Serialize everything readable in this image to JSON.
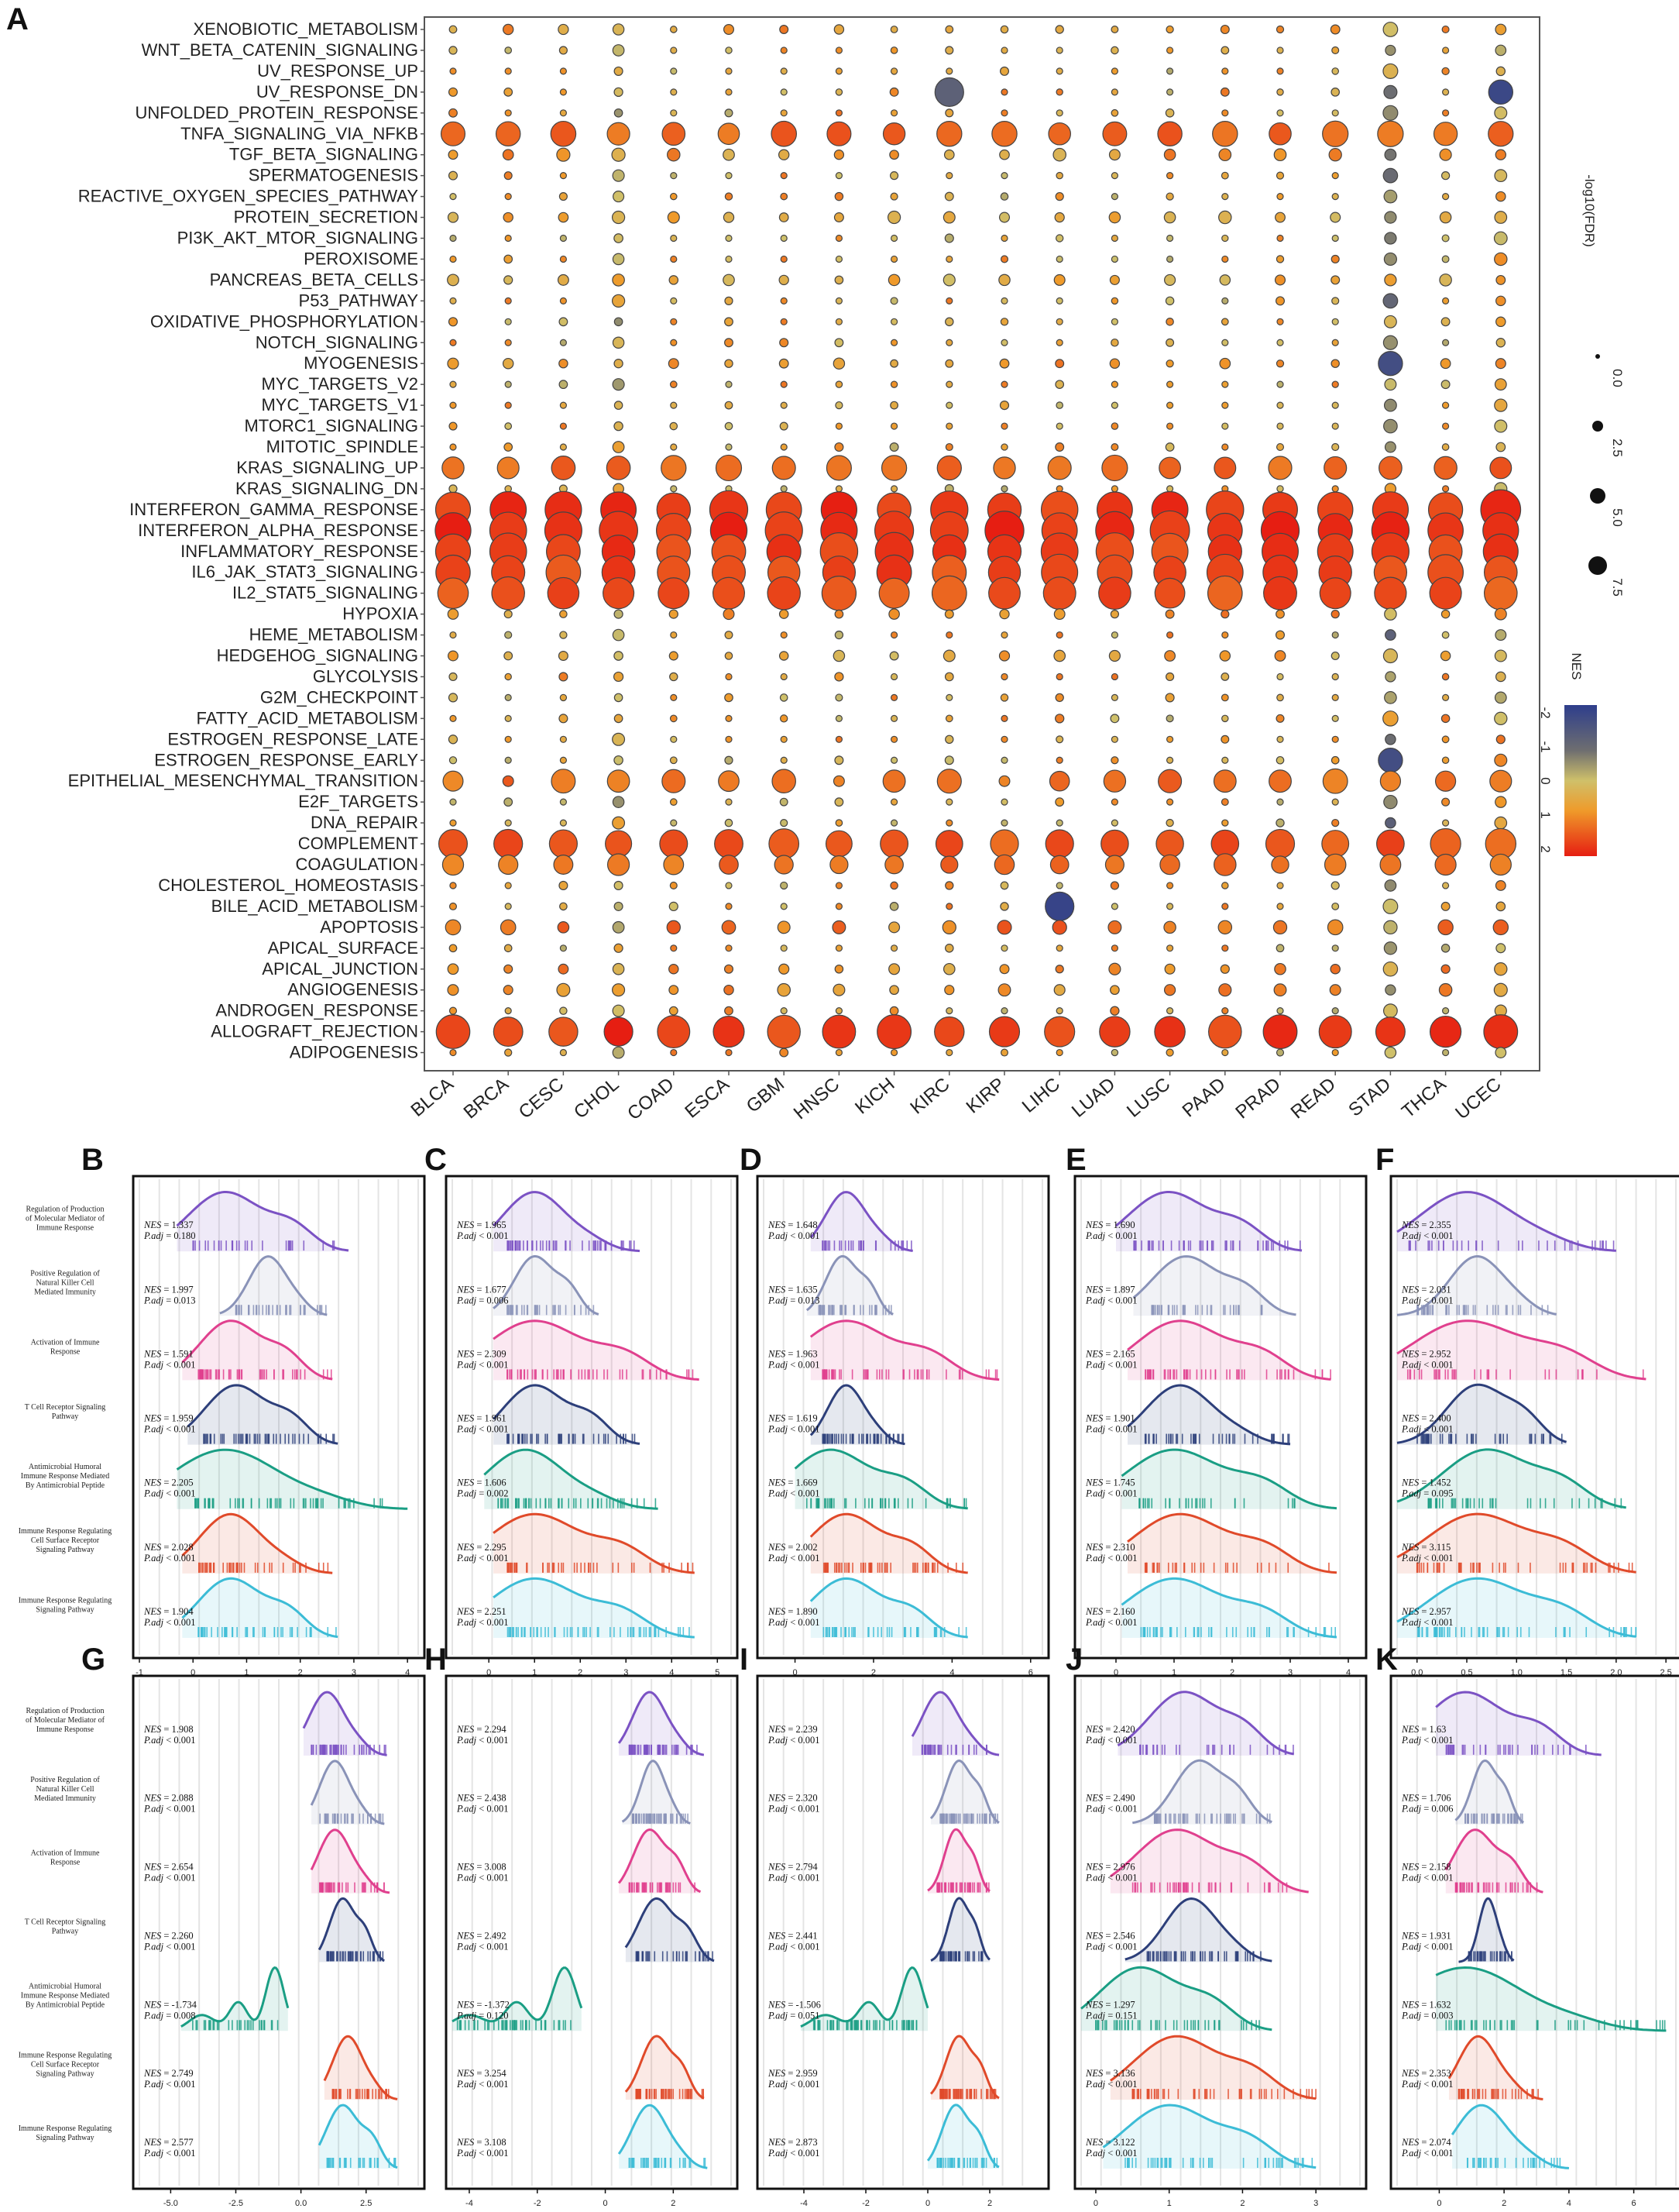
{
  "chart_data": [
    {
      "panel": "A",
      "type": "scatter",
      "title": "",
      "cancer_types": [
        "BLCA",
        "BRCA",
        "CESC",
        "CHOL",
        "COAD",
        "ESCA",
        "GBM",
        "HNSC",
        "KICH",
        "KIRC",
        "KIRP",
        "LIHC",
        "LUAD",
        "LUSC",
        "PAAD",
        "PRAD",
        "READ",
        "STAD",
        "THCA",
        "UCEC"
      ],
      "pathways": [
        "XENOBIOTIC_METABOLISM",
        "WNT_BETA_CATENIN_SIGNALING",
        "UV_RESPONSE_UP",
        "UV_RESPONSE_DN",
        "UNFOLDED_PROTEIN_RESPONSE",
        "TNFA_SIGNALING_VIA_NFKB",
        "TGF_BETA_SIGNALING",
        "SPERMATOGENESIS",
        "REACTIVE_OXYGEN_SPECIES_PATHWAY",
        "PROTEIN_SECRETION",
        "PI3K_AKT_MTOR_SIGNALING",
        "PEROXISOME",
        "PANCREAS_BETA_CELLS",
        "P53_PATHWAY",
        "OXIDATIVE_PHOSPHORYLATION",
        "NOTCH_SIGNALING",
        "MYOGENESIS",
        "MYC_TARGETS_V2",
        "MYC_TARGETS_V1",
        "MTORC1_SIGNALING",
        "MITOTIC_SPINDLE",
        "KRAS_SIGNALING_UP",
        "KRAS_SIGNALING_DN",
        "INTERFERON_GAMMA_RESPONSE",
        "INTERFERON_ALPHA_RESPONSE",
        "INFLAMMATORY_RESPONSE",
        "IL6_JAK_STAT3_SIGNALING",
        "IL2_STAT5_SIGNALING",
        "HYPOXIA",
        "HEME_METABOLISM",
        "HEDGEHOG_SIGNALING",
        "GLYCOLYSIS",
        "G2M_CHECKPOINT",
        "FATTY_ACID_METABOLISM",
        "ESTROGEN_RESPONSE_LATE",
        "ESTROGEN_RESPONSE_EARLY",
        "EPITHELIAL_MESENCHYMAL_TRANSITION",
        "E2F_TARGETS",
        "DNA_REPAIR",
        "COMPLEMENT",
        "COAGULATION",
        "CHOLESTEROL_HOMEOSTASIS",
        "BILE_ACID_METABOLISM",
        "APOPTOSIS",
        "APICAL_SURFACE",
        "APICAL_JUNCTION",
        "ANGIOGENESIS",
        "ANDROGEN_RESPONSE",
        "ALLOGRAFT_REJECTION",
        "ADIPOGENESIS"
      ],
      "size_legend_title": "-log10(FDR)",
      "size_legend_values": [
        "0.0",
        "2.5",
        "5.0",
        "7.5"
      ],
      "color_legend_title": "NES",
      "color_legend_ticks": [
        "-2",
        "-1",
        "0",
        "1",
        "2"
      ],
      "highlight_points": [
        {
          "pathway": "INTERFERON_GAMMA_RESPONSE",
          "cancer": "UCEC",
          "nes": 2.4,
          "neglog10fdr": 7.5
        },
        {
          "pathway": "UV_RESPONSE_DN",
          "cancer": "UCEC",
          "nes": -2.2,
          "neglog10fdr": 4
        },
        {
          "pathway": "UV_RESPONSE_DN",
          "cancer": "KIRC",
          "nes": -1.4,
          "neglog10fdr": 5
        },
        {
          "pathway": "BILE_ACID_METABOLISM",
          "cancer": "LIHC",
          "nes": -2.3,
          "neglog10fdr": 5
        },
        {
          "pathway": "MYOGENESIS",
          "cancer": "STAD",
          "nes": -2.0,
          "neglog10fdr": 4
        },
        {
          "pathway": "ESTROGEN_RESPONSE_EARLY",
          "cancer": "STAD",
          "nes": -2.0,
          "neglog10fdr": 4
        },
        {
          "pathway": "ALLOGRAFT_REJECTION",
          "cancer": "CHOL",
          "nes": 2.5,
          "neglog10fdr": 5
        }
      ]
    },
    {
      "panel": "B-K",
      "type": "area",
      "row_labels": [
        "Regulation of Production of Molecular Mediator of Immune Response",
        "Positive Regulation of Natural Killer Cell Mediated Immunity",
        "Activation of Immune Response",
        "T Cell Receptor Signaling Pathway",
        "Antimicrobial Humoral Immune Response Mediated By Antimicrobial Peptide",
        "Immune Response Regulating Cell Surface Receptor Signaling Pathway",
        "Immune Response Regulating Signaling Pathway"
      ],
      "row_colors": [
        "#7b52c4",
        "#8a93b8",
        "#e0408e",
        "#2d3f7a",
        "#1a9e84",
        "#e04a2a",
        "#3cbcd6"
      ],
      "panels": [
        {
          "label": "B",
          "xticks": [
            "-1",
            "0",
            "1",
            "2",
            "3",
            "4"
          ],
          "xlim": [
            -1,
            4.2
          ],
          "nes": [
            "1.337",
            "1.997",
            "1.591",
            "1.959",
            "2.205",
            "2.028",
            "1.904"
          ],
          "padj": [
            "0.180",
            "0.013",
            "0.001",
            "0.001",
            "0.001",
            "0.001",
            "0.001"
          ],
          "padj_op": [
            "=",
            "=",
            "<",
            "<",
            "<",
            "<",
            "<"
          ],
          "peak": [
            0.6,
            1.4,
            0.7,
            0.8,
            0.6,
            0.7,
            0.7
          ],
          "spread": [
            2.9,
            2.5,
            2.6,
            2.7,
            4.0,
            2.6,
            2.7
          ]
        },
        {
          "label": "C",
          "xticks": [
            "0",
            "1",
            "2",
            "3",
            "4",
            "5"
          ],
          "xlim": [
            -0.8,
            5.3
          ],
          "nes": [
            "1.965",
            "1.677",
            "2.309",
            "1.961",
            "1.606",
            "2.295",
            "2.251"
          ],
          "padj": [
            "0.001",
            "0.006",
            "0.001",
            "0.001",
            "0.002",
            "0.001",
            "0.001"
          ],
          "padj_op": [
            "<",
            "=",
            "<",
            "<",
            "=",
            "<",
            "<"
          ],
          "peak": [
            1.0,
            1.0,
            1.0,
            1.0,
            0.8,
            1.0,
            1.0
          ],
          "spread": [
            3.3,
            2.4,
            4.6,
            3.3,
            3.7,
            4.5,
            4.5
          ]
        },
        {
          "label": "D",
          "xticks": [
            "0",
            "2",
            "4",
            "6"
          ],
          "xlim": [
            -0.8,
            6.3
          ],
          "nes": [
            "1.648",
            "1.635",
            "1.963",
            "1.619",
            "1.669",
            "2.002",
            "1.890"
          ],
          "padj": [
            "0.001",
            "0.013",
            "0.001",
            "0.001",
            "0.001",
            "0.001",
            "0.001"
          ],
          "padj_op": [
            "<",
            "=",
            "<",
            "<",
            "<",
            "<",
            "<"
          ],
          "peak": [
            1.3,
            1.2,
            1.3,
            1.3,
            0.9,
            1.3,
            1.3
          ],
          "spread": [
            3.0,
            2.5,
            5.2,
            2.8,
            4.4,
            4.4,
            4.4
          ]
        },
        {
          "label": "E",
          "xticks": [
            "0",
            "1",
            "2",
            "3",
            "4"
          ],
          "xlim": [
            -0.6,
            4.2
          ],
          "nes": [
            "1.690",
            "1.897",
            "2.165",
            "1.901",
            "1.745",
            "2.310",
            "2.160"
          ],
          "padj": [
            "0.001",
            "0.001",
            "0.001",
            "0.001",
            "0.001",
            "0.001",
            "0.001"
          ],
          "padj_op": [
            "<",
            "<",
            "<",
            "<",
            "<",
            "<",
            "<"
          ],
          "peak": [
            0.9,
            1.2,
            1.1,
            1.1,
            1.0,
            1.1,
            1.0
          ],
          "spread": [
            3.2,
            3.1,
            3.7,
            3.0,
            3.8,
            3.8,
            3.8
          ]
        },
        {
          "label": "F",
          "xticks": [
            "0.0",
            "0.5",
            "1.0",
            "1.5",
            "2.0",
            "2.5"
          ],
          "xlim": [
            -0.2,
            2.6
          ],
          "nes": [
            "2.355",
            "2.031",
            "2.952",
            "2.400",
            "1.452",
            "3.115",
            "2.957"
          ],
          "padj": [
            "0.001",
            "0.001",
            "0.001",
            "0.001",
            "0.095",
            "0.001",
            "0.001"
          ],
          "padj_op": [
            "<",
            "<",
            "<",
            "<",
            "=",
            "<",
            "<"
          ],
          "peak": [
            0.5,
            0.6,
            0.5,
            0.6,
            0.7,
            0.6,
            0.6
          ],
          "spread": [
            2.0,
            1.4,
            2.3,
            1.5,
            2.1,
            2.2,
            2.2
          ]
        },
        {
          "label": "G",
          "xticks": [
            "-5.0",
            "-2.5",
            "0.0",
            "2.5"
          ],
          "xlim": [
            -6.2,
            4.5
          ],
          "nes": [
            "1.908",
            "2.088",
            "2.654",
            "2.260",
            "-1.734",
            "2.749",
            "2.577"
          ],
          "padj": [
            "0.001",
            "0.001",
            "0.001",
            "0.001",
            "0.008",
            "0.001",
            "0.001"
          ],
          "padj_op": [
            "<",
            "<",
            "<",
            "<",
            "=",
            "<",
            "<"
          ],
          "peak": [
            1.0,
            1.3,
            1.3,
            1.6,
            -1.0,
            1.8,
            1.6
          ],
          "spread": [
            3.3,
            3.2,
            3.4,
            3.2,
            -1.0,
            3.7,
            3.7
          ]
        },
        {
          "label": "H",
          "xticks": [
            "-4",
            "-2",
            "0",
            "2"
          ],
          "xlim": [
            -4.5,
            3.7
          ],
          "nes": [
            "2.294",
            "2.438",
            "3.008",
            "2.492",
            "-1.372",
            "3.254",
            "3.108"
          ],
          "padj": [
            "0.001",
            "0.001",
            "0.001",
            "0.001",
            "0.120",
            "0.001",
            "0.001"
          ],
          "padj_op": [
            "<",
            "<",
            "<",
            "<",
            "=",
            "<",
            "<"
          ],
          "peak": [
            1.3,
            1.4,
            1.3,
            1.5,
            -1.2,
            1.5,
            1.3
          ],
          "spread": [
            2.9,
            2.5,
            2.8,
            3.2,
            -0.9,
            2.9,
            3.0
          ]
        },
        {
          "label": "I",
          "xticks": [
            "-4",
            "-2",
            "0",
            "2"
          ],
          "xlim": [
            -5.3,
            3.7
          ],
          "nes": [
            "2.239",
            "2.320",
            "2.794",
            "2.441",
            "-1.506",
            "2.959",
            "2.873"
          ],
          "padj": [
            "0.001",
            "0.001",
            "0.001",
            "0.001",
            "0.051",
            "0.001",
            "0.001"
          ],
          "padj_op": [
            "<",
            "<",
            "<",
            "<",
            "=",
            "<",
            "<"
          ],
          "peak": [
            0.4,
            1.0,
            0.9,
            1.0,
            -0.5,
            1.0,
            0.9
          ],
          "spread": [
            2.3,
            2.3,
            2.0,
            2.0,
            -0.3,
            2.3,
            2.3
          ]
        },
        {
          "label": "J",
          "xticks": [
            "0",
            "1",
            "2",
            "3"
          ],
          "xlim": [
            -0.2,
            3.6
          ],
          "nes": [
            "2.420",
            "2.490",
            "2.976",
            "2.546",
            "1.297",
            "3.136",
            "3.122"
          ],
          "padj": [
            "0.001",
            "0.001",
            "0.001",
            "0.001",
            "0.151",
            "0.001",
            "0.001"
          ],
          "padj_op": [
            "<",
            "<",
            "<",
            "<",
            "=",
            "<",
            "<"
          ],
          "peak": [
            1.2,
            1.4,
            1.1,
            1.3,
            0.6,
            1.1,
            1.0
          ],
          "spread": [
            2.7,
            2.4,
            2.9,
            2.4,
            2.4,
            3.0,
            3.0
          ]
        },
        {
          "label": "K",
          "xticks": [
            "0",
            "2",
            "4",
            "6"
          ],
          "xlim": [
            -1.3,
            7.3
          ],
          "nes": [
            "1.63",
            "1.706",
            "2.158",
            "1.931",
            "1.632",
            "2.353",
            "2.074"
          ],
          "padj": [
            "0.001",
            "0.006",
            "0.001",
            "0.001",
            "0.003",
            "0.001",
            "0.001"
          ],
          "padj_op": [
            "<",
            "=",
            "<",
            "<",
            "=",
            "<",
            "<"
          ],
          "peak": [
            0.8,
            1.4,
            1.1,
            1.5,
            0.8,
            1.2,
            1.3
          ],
          "spread": [
            5.0,
            2.6,
            3.2,
            2.3,
            7.0,
            3.2,
            4.0
          ]
        }
      ]
    }
  ],
  "colors": {
    "nes_neg": "#2e3e8c",
    "nes_zero": "#d9d07a",
    "nes_pos": "#e61e12"
  }
}
